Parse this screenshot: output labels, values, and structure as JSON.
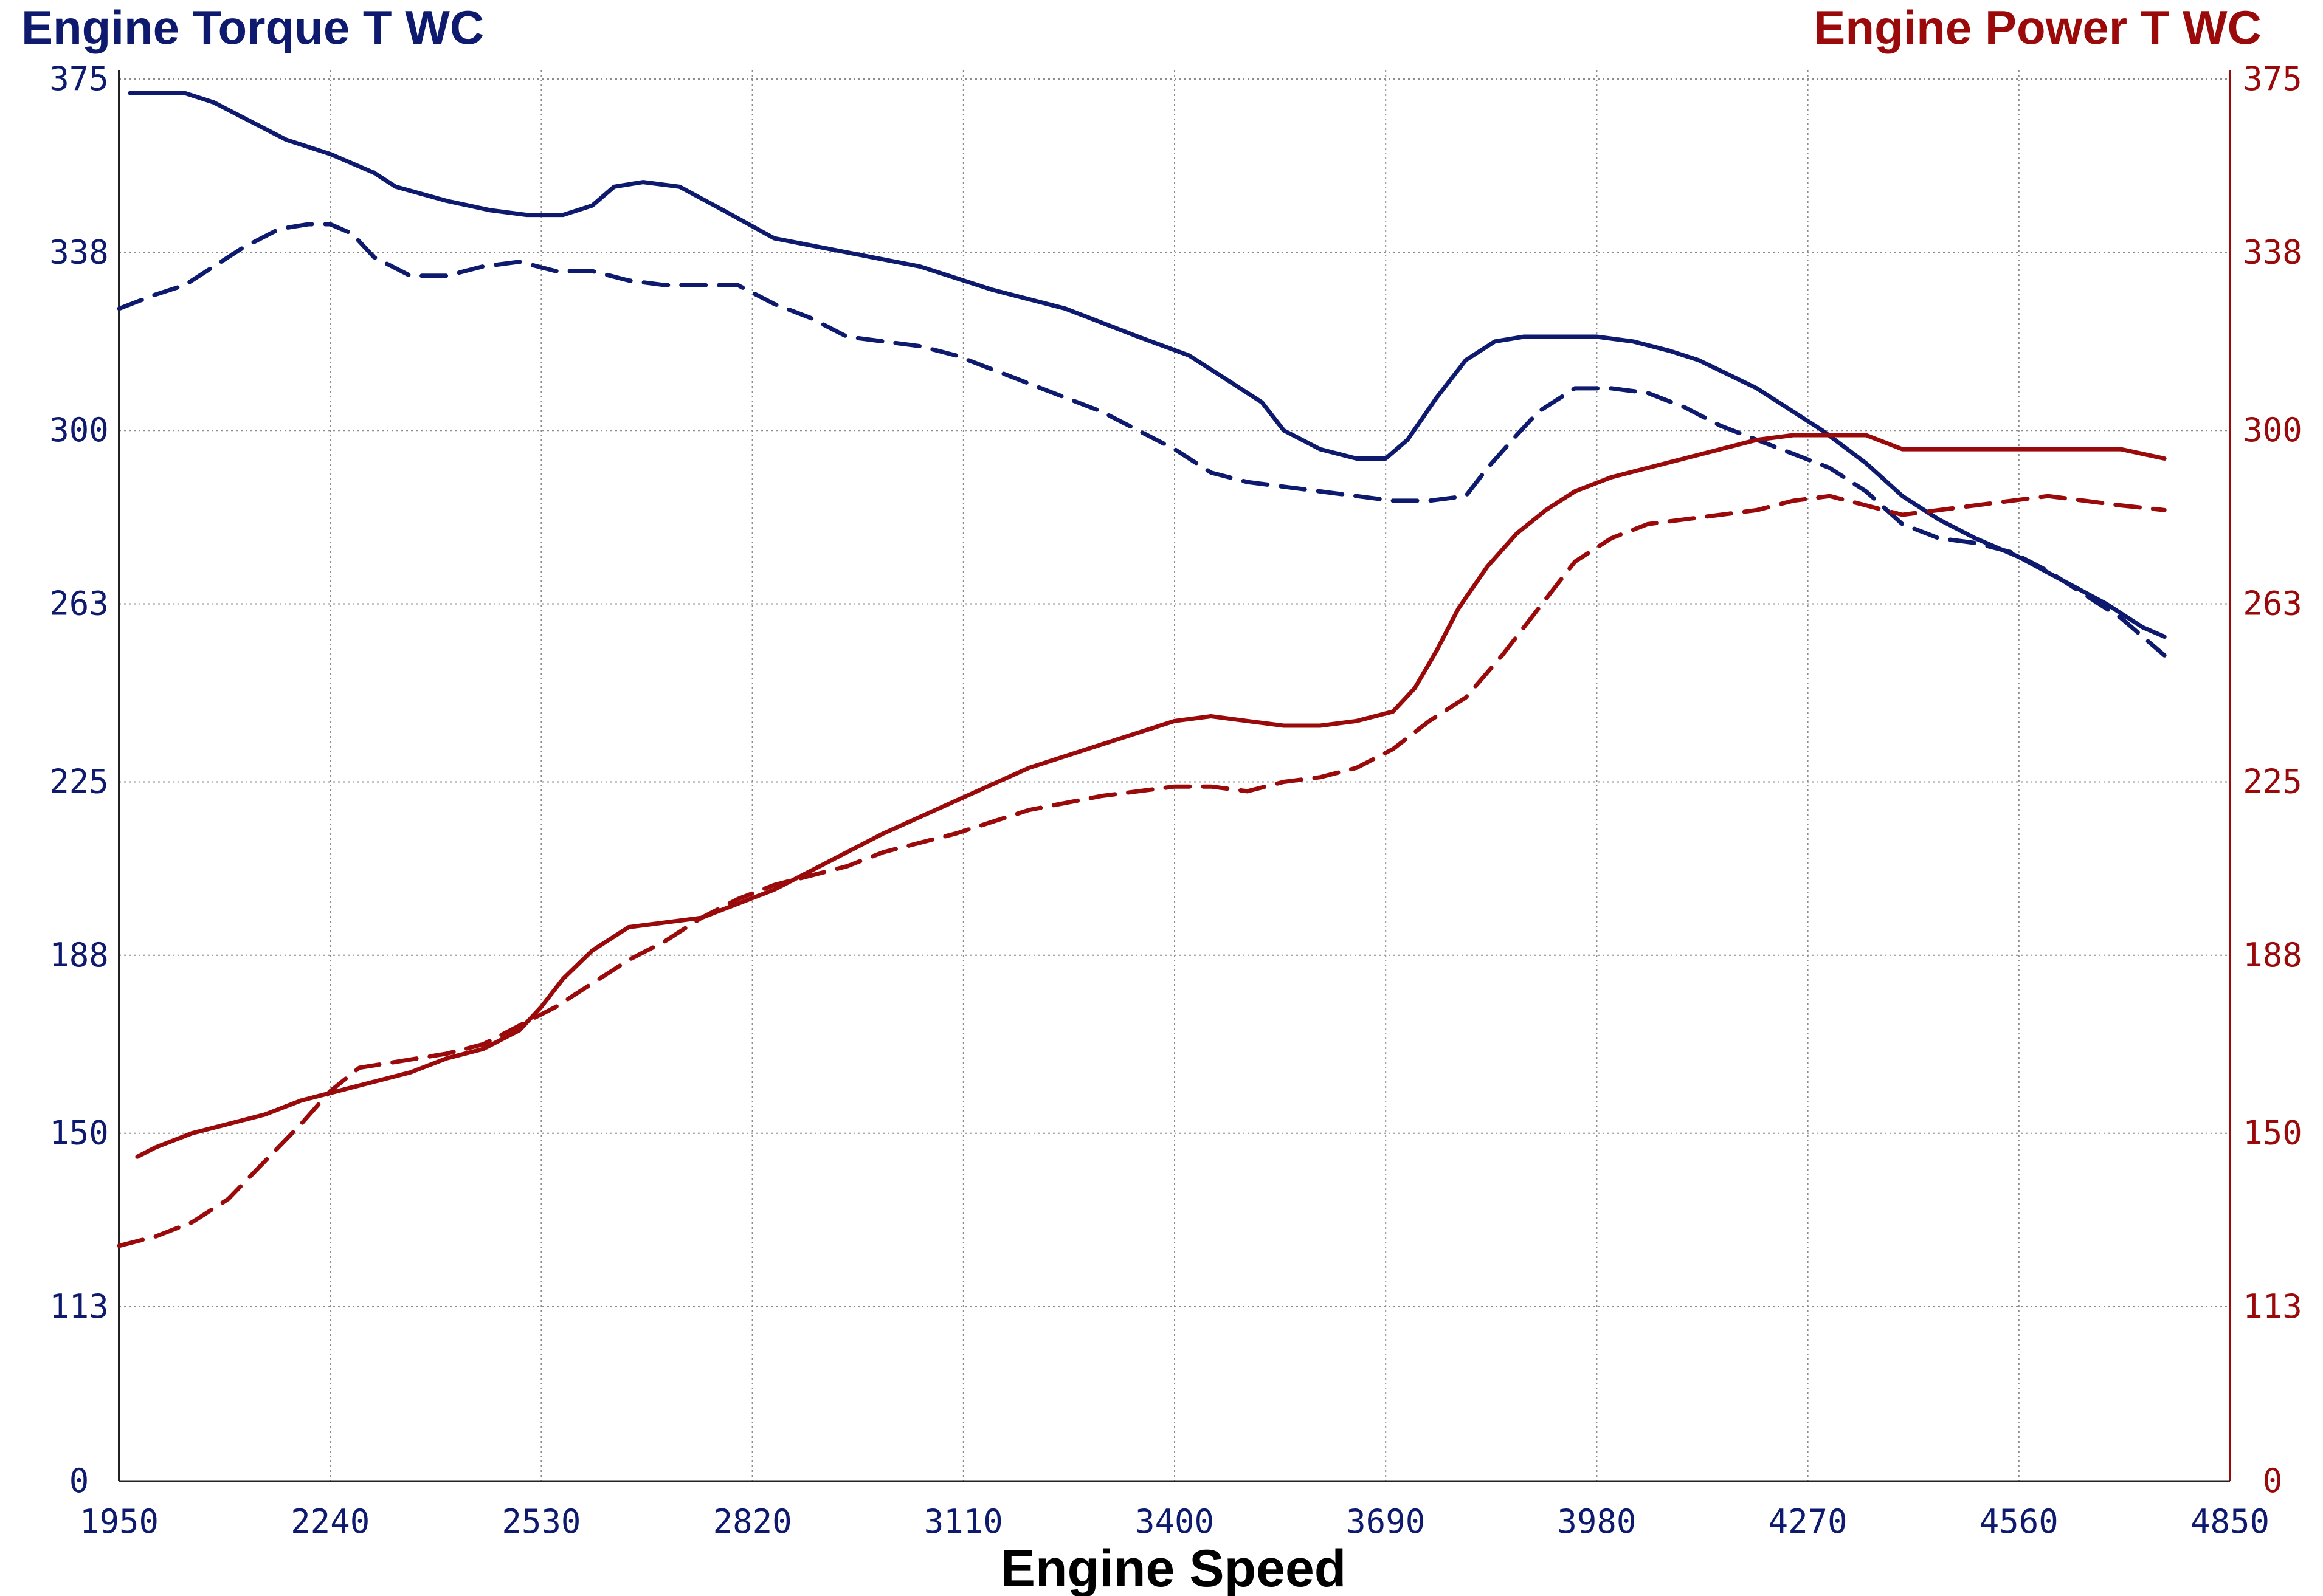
{
  "chart_data": {
    "type": "line",
    "title_left": "Engine Torque T WC",
    "title_right": "Engine Power T WC",
    "xlabel": "Engine Speed",
    "x_ticks": [
      "1950",
      "2240",
      "2530",
      "2820",
      "3110",
      "3400",
      "3690",
      "3980",
      "4270",
      "4560",
      "4850"
    ],
    "y_left_ticks": [
      "375",
      "338",
      "300",
      "263",
      "225",
      "188",
      "150",
      "113",
      "0"
    ],
    "y_right_ticks": [
      "375",
      "338",
      "300",
      "263",
      "225",
      "188",
      "150",
      "113",
      "0"
    ],
    "xlim": [
      1950,
      4850
    ],
    "grid": true,
    "colors": {
      "torque": "#0d1a6e",
      "power": "#9b0a0a",
      "grid": "#8c8c8c"
    },
    "series": [
      {
        "axis": "left",
        "style": "solid",
        "color": "#0d1a6e",
        "x": [
          1965,
          2010,
          2040,
          2080,
          2130,
          2180,
          2240,
          2300,
          2330,
          2400,
          2460,
          2510,
          2560,
          2600,
          2630,
          2670,
          2720,
          2780,
          2850,
          2950,
          3050,
          3150,
          3250,
          3350,
          3420,
          3480,
          3520,
          3550,
          3600,
          3650,
          3690,
          3720,
          3760,
          3800,
          3840,
          3880,
          3930,
          3980,
          4030,
          4080,
          4120,
          4160,
          4200,
          4240,
          4290,
          4350,
          4400,
          4450,
          4500,
          4560,
          4620,
          4680,
          4730,
          4760
        ],
        "y": [
          372,
          372,
          372,
          370,
          366,
          362,
          359,
          355,
          352,
          349,
          347,
          346,
          346,
          348,
          352,
          353,
          352,
          347,
          341,
          338,
          335,
          330,
          326,
          320,
          316,
          310,
          306,
          300,
          296,
          294,
          294,
          298,
          307,
          315,
          319,
          320,
          320,
          320,
          319,
          317,
          315,
          312,
          309,
          305,
          300,
          293,
          286,
          281,
          277,
          273,
          268,
          263,
          258,
          256
        ]
      },
      {
        "axis": "left",
        "style": "dashed",
        "color": "#0d1a6e",
        "x": [
          1950,
          2000,
          2040,
          2080,
          2120,
          2170,
          2210,
          2240,
          2270,
          2300,
          2350,
          2400,
          2450,
          2500,
          2550,
          2600,
          2650,
          2700,
          2750,
          2800,
          2850,
          2900,
          2950,
          3000,
          3050,
          3100,
          3200,
          3300,
          3350,
          3400,
          3450,
          3500,
          3550,
          3600,
          3650,
          3700,
          3750,
          3800,
          3830,
          3870,
          3900,
          3950,
          4000,
          4050,
          4100,
          4150,
          4200,
          4250,
          4300,
          4350,
          4400,
          4450,
          4500,
          4550,
          4600,
          4650,
          4700,
          4760
        ],
        "y": [
          326,
          329,
          331,
          335,
          339,
          343,
          344,
          344,
          342,
          337,
          333,
          333,
          335,
          336,
          334,
          334,
          332,
          331,
          331,
          331,
          327,
          324,
          320,
          319,
          318,
          316,
          310,
          304,
          300,
          296,
          291,
          289,
          288,
          287,
          286,
          285,
          285,
          286,
          292,
          299,
          304,
          309,
          309,
          308,
          305,
          301,
          298,
          295,
          292,
          287,
          280,
          277,
          276,
          274,
          270,
          265,
          260,
          252
        ]
      },
      {
        "axis": "right",
        "style": "solid",
        "color": "#9b0a0a",
        "x": [
          1975,
          2000,
          2050,
          2100,
          2150,
          2200,
          2250,
          2300,
          2350,
          2400,
          2450,
          2500,
          2530,
          2560,
          2600,
          2650,
          2700,
          2750,
          2800,
          2850,
          2900,
          2950,
          3000,
          3100,
          3200,
          3300,
          3400,
          3450,
          3500,
          3550,
          3600,
          3650,
          3700,
          3730,
          3760,
          3790,
          3830,
          3870,
          3910,
          3950,
          4000,
          4050,
          4100,
          4150,
          4200,
          4250,
          4300,
          4350,
          4400,
          4500,
          4600,
          4700,
          4760
        ],
        "y": [
          145,
          147,
          150,
          152,
          154,
          157,
          159,
          161,
          163,
          166,
          168,
          172,
          177,
          183,
          189,
          194,
          195,
          196,
          199,
          202,
          206,
          210,
          214,
          221,
          228,
          233,
          238,
          239,
          238,
          237,
          237,
          238,
          240,
          245,
          253,
          262,
          271,
          278,
          283,
          287,
          290,
          292,
          294,
          296,
          298,
          299,
          299,
          299,
          296,
          296,
          296,
          296,
          294
        ]
      },
      {
        "axis": "right",
        "style": "dashed",
        "color": "#9b0a0a",
        "x": [
          1950,
          2000,
          2050,
          2100,
          2150,
          2200,
          2240,
          2280,
          2320,
          2360,
          2400,
          2450,
          2500,
          2550,
          2600,
          2650,
          2700,
          2750,
          2800,
          2850,
          2900,
          2950,
          3000,
          3100,
          3200,
          3300,
          3400,
          3450,
          3500,
          3550,
          3600,
          3650,
          3700,
          3750,
          3800,
          3850,
          3900,
          3950,
          4000,
          4050,
          4100,
          4150,
          4200,
          4250,
          4300,
          4350,
          4400,
          4450,
          4500,
          4550,
          4600,
          4650,
          4700,
          4760
        ],
        "y": [
          126,
          128,
          131,
          136,
          144,
          152,
          159,
          164,
          165,
          166,
          167,
          169,
          173,
          177,
          182,
          187,
          191,
          196,
          200,
          203,
          205,
          207,
          210,
          214,
          219,
          222,
          224,
          224,
          223,
          225,
          226,
          228,
          232,
          238,
          243,
          252,
          262,
          272,
          277,
          280,
          281,
          282,
          283,
          285,
          286,
          284,
          282,
          283,
          284,
          285,
          286,
          285,
          284,
          283
        ]
      }
    ]
  }
}
